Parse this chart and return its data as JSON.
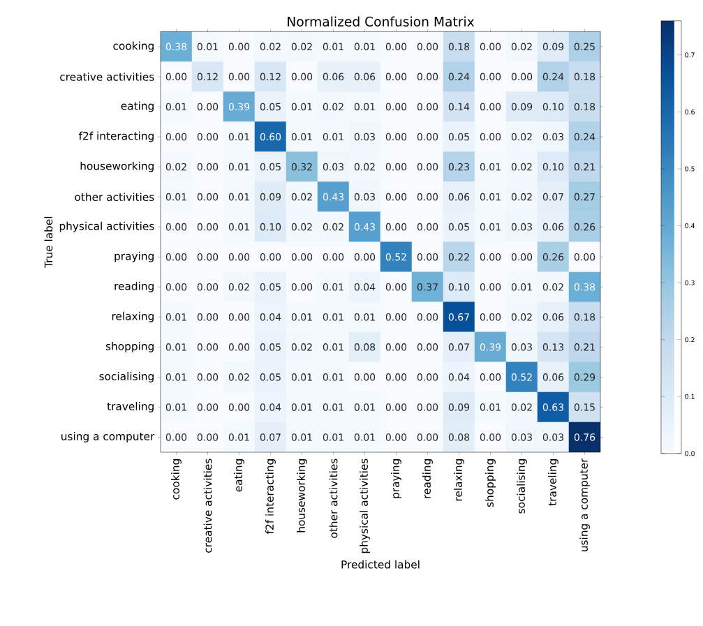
{
  "chart_data": {
    "type": "heatmap",
    "title": "Normalized Confusion Matrix",
    "xlabel": "Predicted label",
    "ylabel": "True label",
    "categories": [
      "cooking",
      "creative activities",
      "eating",
      "f2f interacting",
      "houseworking",
      "other activities",
      "physical activities",
      "praying",
      "reading",
      "relaxing",
      "shopping",
      "socialising",
      "traveling",
      "using a computer"
    ],
    "y_categories": [
      "cooking",
      "creative activities",
      "eating",
      "f2f interacting",
      "houseworking",
      "other activities",
      "physical activities",
      "praying",
      "reading",
      "relaxing",
      "shopping",
      "socialising",
      "traveling",
      "using a computer"
    ],
    "cells": [
      [
        0.38,
        0.01,
        0.0,
        0.02,
        0.02,
        0.01,
        0.01,
        0.0,
        0.0,
        0.18,
        0.0,
        0.02,
        0.09,
        0.25
      ],
      [
        0.0,
        0.12,
        0.0,
        0.12,
        0.0,
        0.06,
        0.06,
        0.0,
        0.0,
        0.24,
        0.0,
        0.0,
        0.24,
        0.18
      ],
      [
        0.01,
        0.0,
        0.39,
        0.05,
        0.01,
        0.02,
        0.01,
        0.0,
        0.0,
        0.14,
        0.0,
        0.09,
        0.1,
        0.18
      ],
      [
        0.0,
        0.0,
        0.01,
        0.6,
        0.01,
        0.01,
        0.03,
        0.0,
        0.0,
        0.05,
        0.0,
        0.02,
        0.03,
        0.24
      ],
      [
        0.02,
        0.0,
        0.01,
        0.05,
        0.32,
        0.03,
        0.02,
        0.0,
        0.0,
        0.23,
        0.01,
        0.02,
        0.1,
        0.21
      ],
      [
        0.01,
        0.0,
        0.01,
        0.09,
        0.02,
        0.43,
        0.03,
        0.0,
        0.0,
        0.06,
        0.01,
        0.02,
        0.07,
        0.27
      ],
      [
        0.0,
        0.0,
        0.01,
        0.1,
        0.02,
        0.02,
        0.43,
        0.0,
        0.0,
        0.05,
        0.01,
        0.03,
        0.06,
        0.26
      ],
      [
        0.0,
        0.0,
        0.0,
        0.0,
        0.0,
        0.0,
        0.0,
        0.52,
        0.0,
        0.22,
        0.0,
        0.0,
        0.26,
        0.0
      ],
      [
        0.0,
        0.0,
        0.02,
        0.05,
        0.0,
        0.01,
        0.04,
        0.0,
        0.37,
        0.1,
        0.0,
        0.01,
        0.02,
        0.38
      ],
      [
        0.01,
        0.0,
        0.0,
        0.04,
        0.01,
        0.01,
        0.01,
        0.0,
        0.0,
        0.67,
        0.0,
        0.02,
        0.06,
        0.18
      ],
      [
        0.01,
        0.0,
        0.0,
        0.05,
        0.02,
        0.01,
        0.08,
        0.0,
        0.0,
        0.07,
        0.39,
        0.03,
        0.13,
        0.21
      ],
      [
        0.01,
        0.0,
        0.02,
        0.05,
        0.01,
        0.01,
        0.0,
        0.0,
        0.0,
        0.04,
        0.0,
        0.52,
        0.06,
        0.29
      ],
      [
        0.01,
        0.0,
        0.0,
        0.04,
        0.01,
        0.01,
        0.01,
        0.0,
        0.0,
        0.09,
        0.01,
        0.02,
        0.63,
        0.15
      ],
      [
        0.0,
        0.0,
        0.01,
        0.07,
        0.01,
        0.01,
        0.01,
        0.0,
        0.0,
        0.08,
        0.0,
        0.03,
        0.03,
        0.76
      ]
    ],
    "cell_labels": [
      [
        "0.38",
        "0.01",
        "0.00",
        "0.02",
        "0.02",
        "0.01",
        "0.01",
        "0.00",
        "0.00",
        "0.18",
        "0.00",
        "0.02",
        "0.09",
        "0.25"
      ],
      [
        "0.00",
        "0.12",
        "0.00",
        "0.12",
        "0.00",
        "0.06",
        "0.06",
        "0.00",
        "0.00",
        "0.24",
        "0.00",
        "0.00",
        "0.24",
        "0.18"
      ],
      [
        "0.01",
        "0.00",
        "0.39",
        "0.05",
        "0.01",
        "0.02",
        "0.01",
        "0.00",
        "0.00",
        "0.14",
        "0.00",
        "0.09",
        "0.10",
        "0.18"
      ],
      [
        "0.00",
        "0.00",
        "0.01",
        "0.60",
        "0.01",
        "0.01",
        "0.03",
        "0.00",
        "0.00",
        "0.05",
        "0.00",
        "0.02",
        "0.03",
        "0.24"
      ],
      [
        "0.02",
        "0.00",
        "0.01",
        "0.05",
        "0.32",
        "0.03",
        "0.02",
        "0.00",
        "0.00",
        "0.23",
        "0.01",
        "0.02",
        "0.10",
        "0.21"
      ],
      [
        "0.01",
        "0.00",
        "0.01",
        "0.09",
        "0.02",
        "0.43",
        "0.03",
        "0.00",
        "0.00",
        "0.06",
        "0.01",
        "0.02",
        "0.07",
        "0.27"
      ],
      [
        "0.00",
        "0.00",
        "0.01",
        "0.10",
        "0.02",
        "0.02",
        "0.43",
        "0.00",
        "0.00",
        "0.05",
        "0.01",
        "0.03",
        "0.06",
        "0.26"
      ],
      [
        "0.00",
        "0.00",
        "0.00",
        "0.00",
        "0.00",
        "0.00",
        "0.00",
        "0.52",
        "0.00",
        "0.22",
        "0.00",
        "0.00",
        "0.26",
        "0.00"
      ],
      [
        "0.00",
        "0.00",
        "0.02",
        "0.05",
        "0.00",
        "0.01",
        "0.04",
        "0.00",
        "0.37",
        "0.10",
        "0.00",
        "0.01",
        "0.02",
        "0.38"
      ],
      [
        "0.01",
        "0.00",
        "0.00",
        "0.04",
        "0.01",
        "0.01",
        "0.01",
        "0.00",
        "0.00",
        "0.67",
        "0.00",
        "0.02",
        "0.06",
        "0.18"
      ],
      [
        "0.01",
        "0.00",
        "0.00",
        "0.05",
        "0.02",
        "0.01",
        "0.08",
        "0.00",
        "0.00",
        "0.07",
        "0.39",
        "0.03",
        "0.13",
        "0.21"
      ],
      [
        "0.01",
        "0.00",
        "0.02",
        "0.05",
        "0.01",
        "0.01",
        "0.00",
        "0.00",
        "0.00",
        "0.04",
        "0.00",
        "0.52",
        "0.06",
        "0.29"
      ],
      [
        "0.01",
        "0.00",
        "0.00",
        "0.04",
        "0.01",
        "0.01",
        "0.01",
        "0.00",
        "0.00",
        "0.09",
        "0.01",
        "0.02",
        "0.63",
        "0.15"
      ],
      [
        "0.00",
        "0.00",
        "0.01",
        "0.07",
        "0.01",
        "0.01",
        "0.01",
        "0.00",
        "0.00",
        "0.08",
        "0.00",
        "0.03",
        "0.03",
        "0.76"
      ]
    ],
    "clim": [
      0,
      0.76
    ],
    "cticks": [
      {
        "value": 0,
        "label": "0.0"
      },
      {
        "value": 0.1,
        "label": "0.1"
      },
      {
        "value": 0.2,
        "label": "0.2"
      },
      {
        "value": 0.3,
        "label": "0.3"
      },
      {
        "value": 0.4,
        "label": "0.4"
      },
      {
        "value": 0.5,
        "label": "0.5"
      },
      {
        "value": 0.6,
        "label": "0.6"
      },
      {
        "value": 0.7,
        "label": "0.7"
      }
    ]
  }
}
